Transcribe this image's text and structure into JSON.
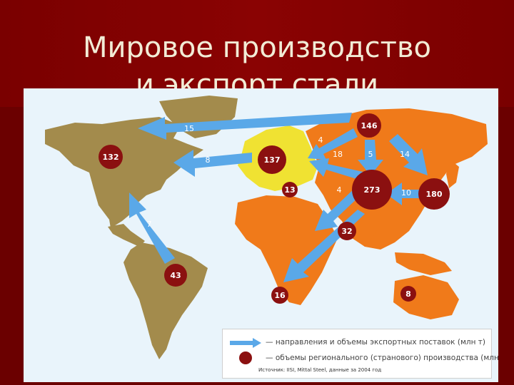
{
  "slide": {
    "title_line1": "Мировое производство",
    "title_line2": "и экспорт стали"
  },
  "map": {
    "production_circles": [
      {
        "region": "north-america",
        "value": "132"
      },
      {
        "region": "south-america",
        "value": "43"
      },
      {
        "region": "europe",
        "value": "137"
      },
      {
        "region": "turkey",
        "value": "13"
      },
      {
        "region": "russia",
        "value": "146"
      },
      {
        "region": "china",
        "value": "273"
      },
      {
        "region": "japan-korea",
        "value": "180"
      },
      {
        "region": "india",
        "value": "32"
      },
      {
        "region": "south-africa",
        "value": "16"
      },
      {
        "region": "australia",
        "value": "8"
      }
    ],
    "export_arrows": [
      {
        "route": "russia-to-north-america",
        "value": "15"
      },
      {
        "route": "europe-to-north-america",
        "value": "8"
      },
      {
        "route": "russia-to-europe",
        "value": "4"
      },
      {
        "route": "china-to-europe",
        "value": "18"
      },
      {
        "route": "russia-to-china",
        "value": "5"
      },
      {
        "route": "russia-to-japan",
        "value": "14"
      },
      {
        "route": "japan-to-china",
        "value": "10"
      },
      {
        "route": "china-to-middle-east",
        "value": "4"
      },
      {
        "route": "south-america-to-north-america",
        "value": "7"
      },
      {
        "route": "china-to-africa",
        "value": ""
      }
    ],
    "colors": {
      "ocean": "#e9f4fb",
      "americas": "#a38b4c",
      "eurasia_africa": "#f07a1a",
      "europe": "#f0e232",
      "arrow": "#5aa8e8",
      "circle": "#8b1010"
    }
  },
  "legend": {
    "arrow_text": "— направления и объемы экспортных поставок (млн т)",
    "circle_text": "— объемы регионального (странового) производства (млн т)",
    "source": "Источник: IISI, Mittal Steel, данные за 2004 год"
  }
}
